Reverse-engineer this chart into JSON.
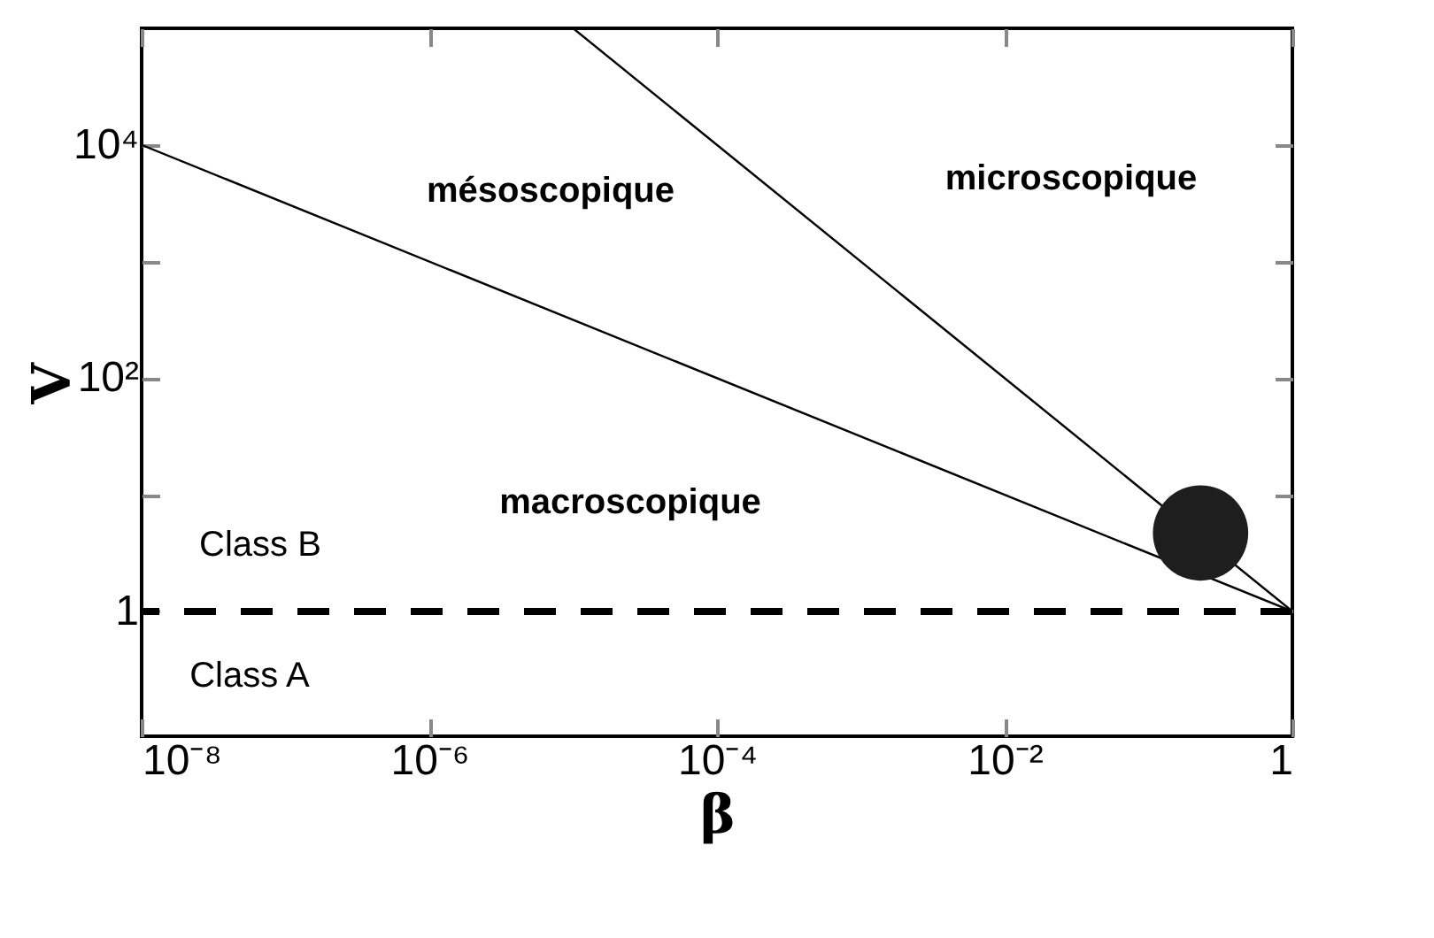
{
  "chart_data": {
    "type": "line",
    "xlabel": "β",
    "ylabel": "Λ",
    "log": "xy",
    "grid": false,
    "xlim": [
      1e-08,
      1
    ],
    "ylim": [
      0.085,
      100000
    ],
    "xticks": [
      {
        "value": 1e-08,
        "label": "10⁻⁸"
      },
      {
        "value": 1e-06,
        "label": "10⁻⁶"
      },
      {
        "value": 0.0001,
        "label": "10⁻⁴"
      },
      {
        "value": 0.01,
        "label": "10⁻²"
      },
      1
    ],
    "yticks": [
      1,
      {
        "value": 10,
        "label": null
      },
      {
        "value": 100,
        "label": "10²"
      },
      {
        "value": 1000,
        "label": null
      },
      {
        "value": 10000,
        "label": "10⁴"
      }
    ],
    "series": [
      {
        "color": "#000000",
        "x": [
          1e-08,
          1
        ],
        "values": [
          10000,
          1
        ]
      },
      {
        "color": "#000000",
        "x": [
          1e-05,
          1
        ],
        "values": [
          100000,
          1
        ]
      },
      {
        "type": "scatter",
        "color": "#1e1e1e",
        "x": [
          0.23
        ],
        "values": [
          4.7
        ]
      }
    ],
    "ref_lines": [
      {
        "axis": "y",
        "value": 1,
        "line_style": "dashed",
        "color": "#000000"
      }
    ],
    "annotations": [
      "mésoscopique",
      "microscopique",
      "macroscopique",
      "Class B",
      "Class A"
    ]
  }
}
